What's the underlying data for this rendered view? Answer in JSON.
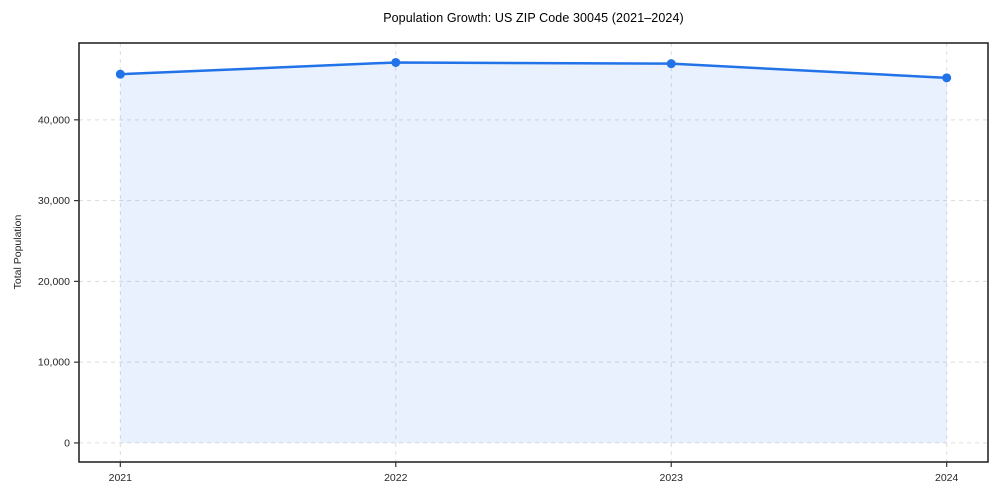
{
  "title": "Population Growth: US ZIP Code 30045 (2021–2024)",
  "colors": {
    "line": "#2272e8",
    "fill_opacity": 0.1,
    "grid": "#dcdcdc",
    "spine": "#1a1a1a",
    "tick": "#333333",
    "tick_text": "#262626",
    "background": "#ffffff"
  },
  "chart_data": {
    "type": "line",
    "title": "Population Growth: US ZIP Code 30045 (2021–2024)",
    "xlabel": "",
    "ylabel": "Total Population",
    "x": [
      2021,
      2022,
      2023,
      2024
    ],
    "series": [
      {
        "name": "Total Population",
        "values": [
          45650,
          47100,
          46950,
          45200
        ]
      }
    ],
    "xtick_labels": [
      "2021",
      "2022",
      "2023",
      "2024"
    ],
    "yticks": [
      0,
      10000,
      20000,
      30000,
      40000
    ],
    "ytick_labels": [
      "0",
      "10,000",
      "20,000",
      "30,000",
      "40,000"
    ],
    "xlim": [
      2020.85,
      2024.15
    ],
    "ylim": [
      -2360,
      49510
    ],
    "grid": true,
    "grid_style": "dashed",
    "legend": false,
    "markers": true,
    "area_fill": true,
    "area_baseline": 0
  }
}
